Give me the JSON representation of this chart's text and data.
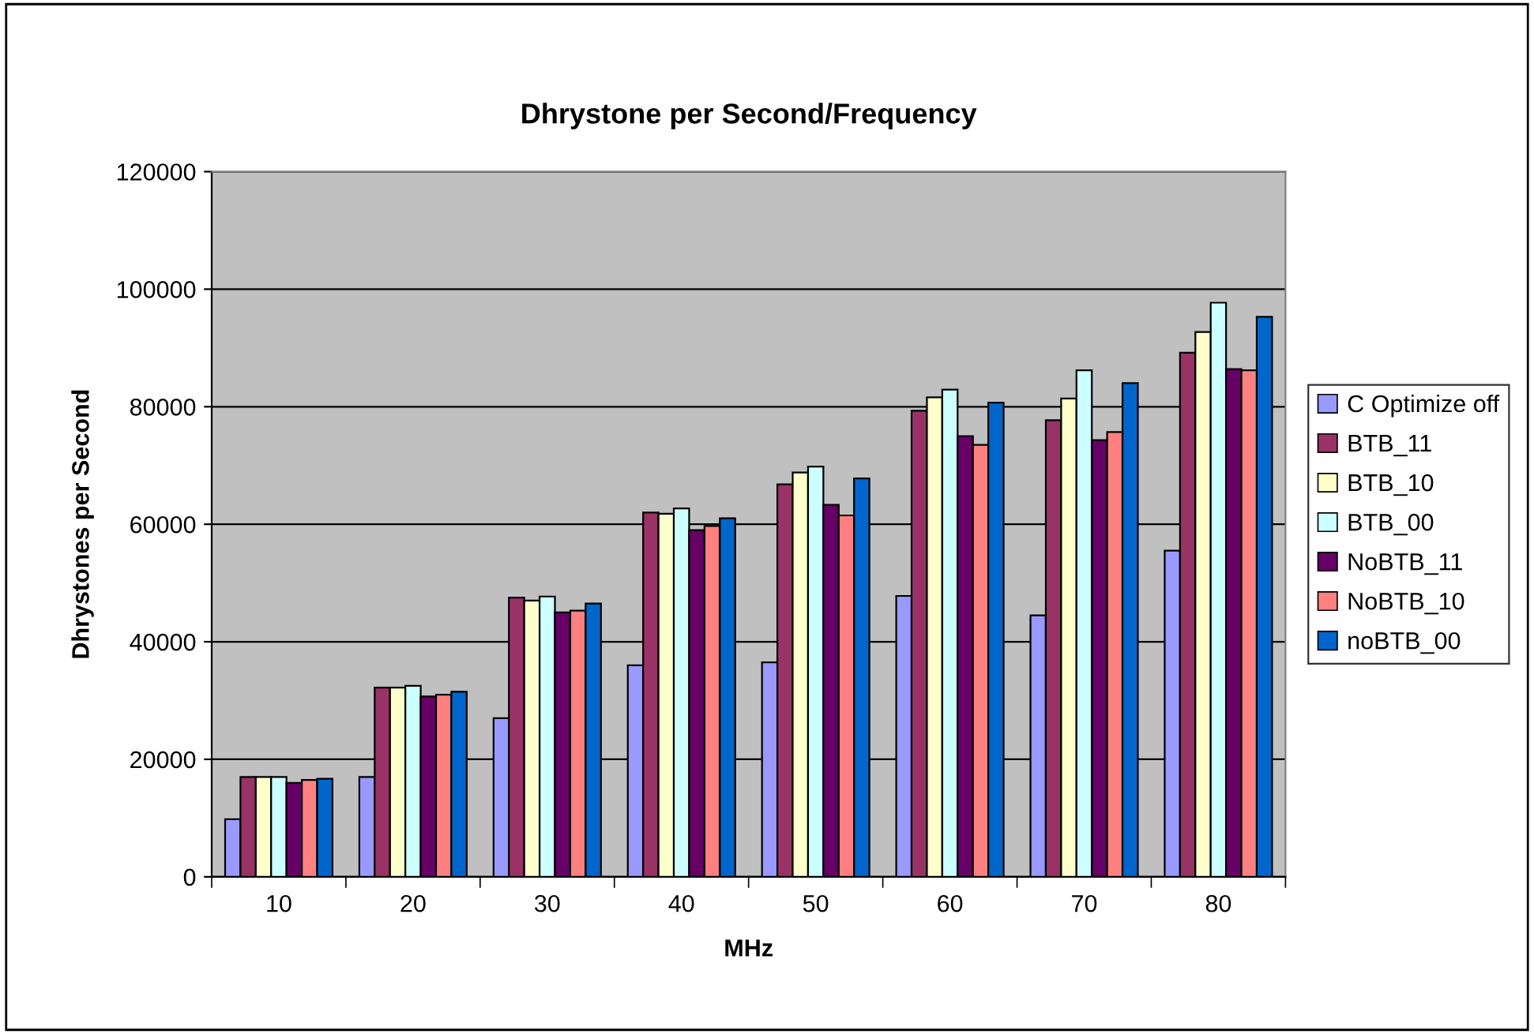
{
  "chart_data": {
    "type": "bar",
    "title": "Dhrystone per Second/Frequency",
    "xlabel": "MHz",
    "ylabel": "Dhrystones per Second",
    "categories": [
      "10",
      "20",
      "30",
      "40",
      "50",
      "60",
      "70",
      "80"
    ],
    "series": [
      {
        "name": "C Optimize off",
        "color": "#9999ff",
        "values": [
          9800,
          17000,
          27000,
          36000,
          36500,
          47800,
          44500,
          55500
        ]
      },
      {
        "name": "BTB_11",
        "color": "#993366",
        "values": [
          17000,
          32200,
          47500,
          62000,
          66800,
          79300,
          77700,
          89200
        ]
      },
      {
        "name": "BTB_10",
        "color": "#ffffcc",
        "values": [
          17000,
          32200,
          47000,
          61800,
          68800,
          81600,
          81400,
          92700
        ]
      },
      {
        "name": "BTB_00",
        "color": "#ccffff",
        "values": [
          17000,
          32500,
          47700,
          62700,
          69800,
          82900,
          86200,
          97700
        ]
      },
      {
        "name": "NoBTB_11",
        "color": "#660066",
        "values": [
          16000,
          30700,
          45000,
          59000,
          63300,
          75000,
          74300,
          86400
        ]
      },
      {
        "name": "NoBTB_10",
        "color": "#ff8080",
        "values": [
          16500,
          31000,
          45300,
          59700,
          61500,
          73500,
          75700,
          86200
        ]
      },
      {
        "name": "noBTB_00",
        "color": "#0066cc",
        "values": [
          16700,
          31500,
          46500,
          61000,
          67800,
          80700,
          84000,
          95300
        ]
      }
    ],
    "ylim": [
      0,
      120000
    ],
    "yticks": [
      0,
      20000,
      40000,
      60000,
      80000,
      100000,
      120000
    ],
    "grid": "y",
    "legend": "right"
  }
}
